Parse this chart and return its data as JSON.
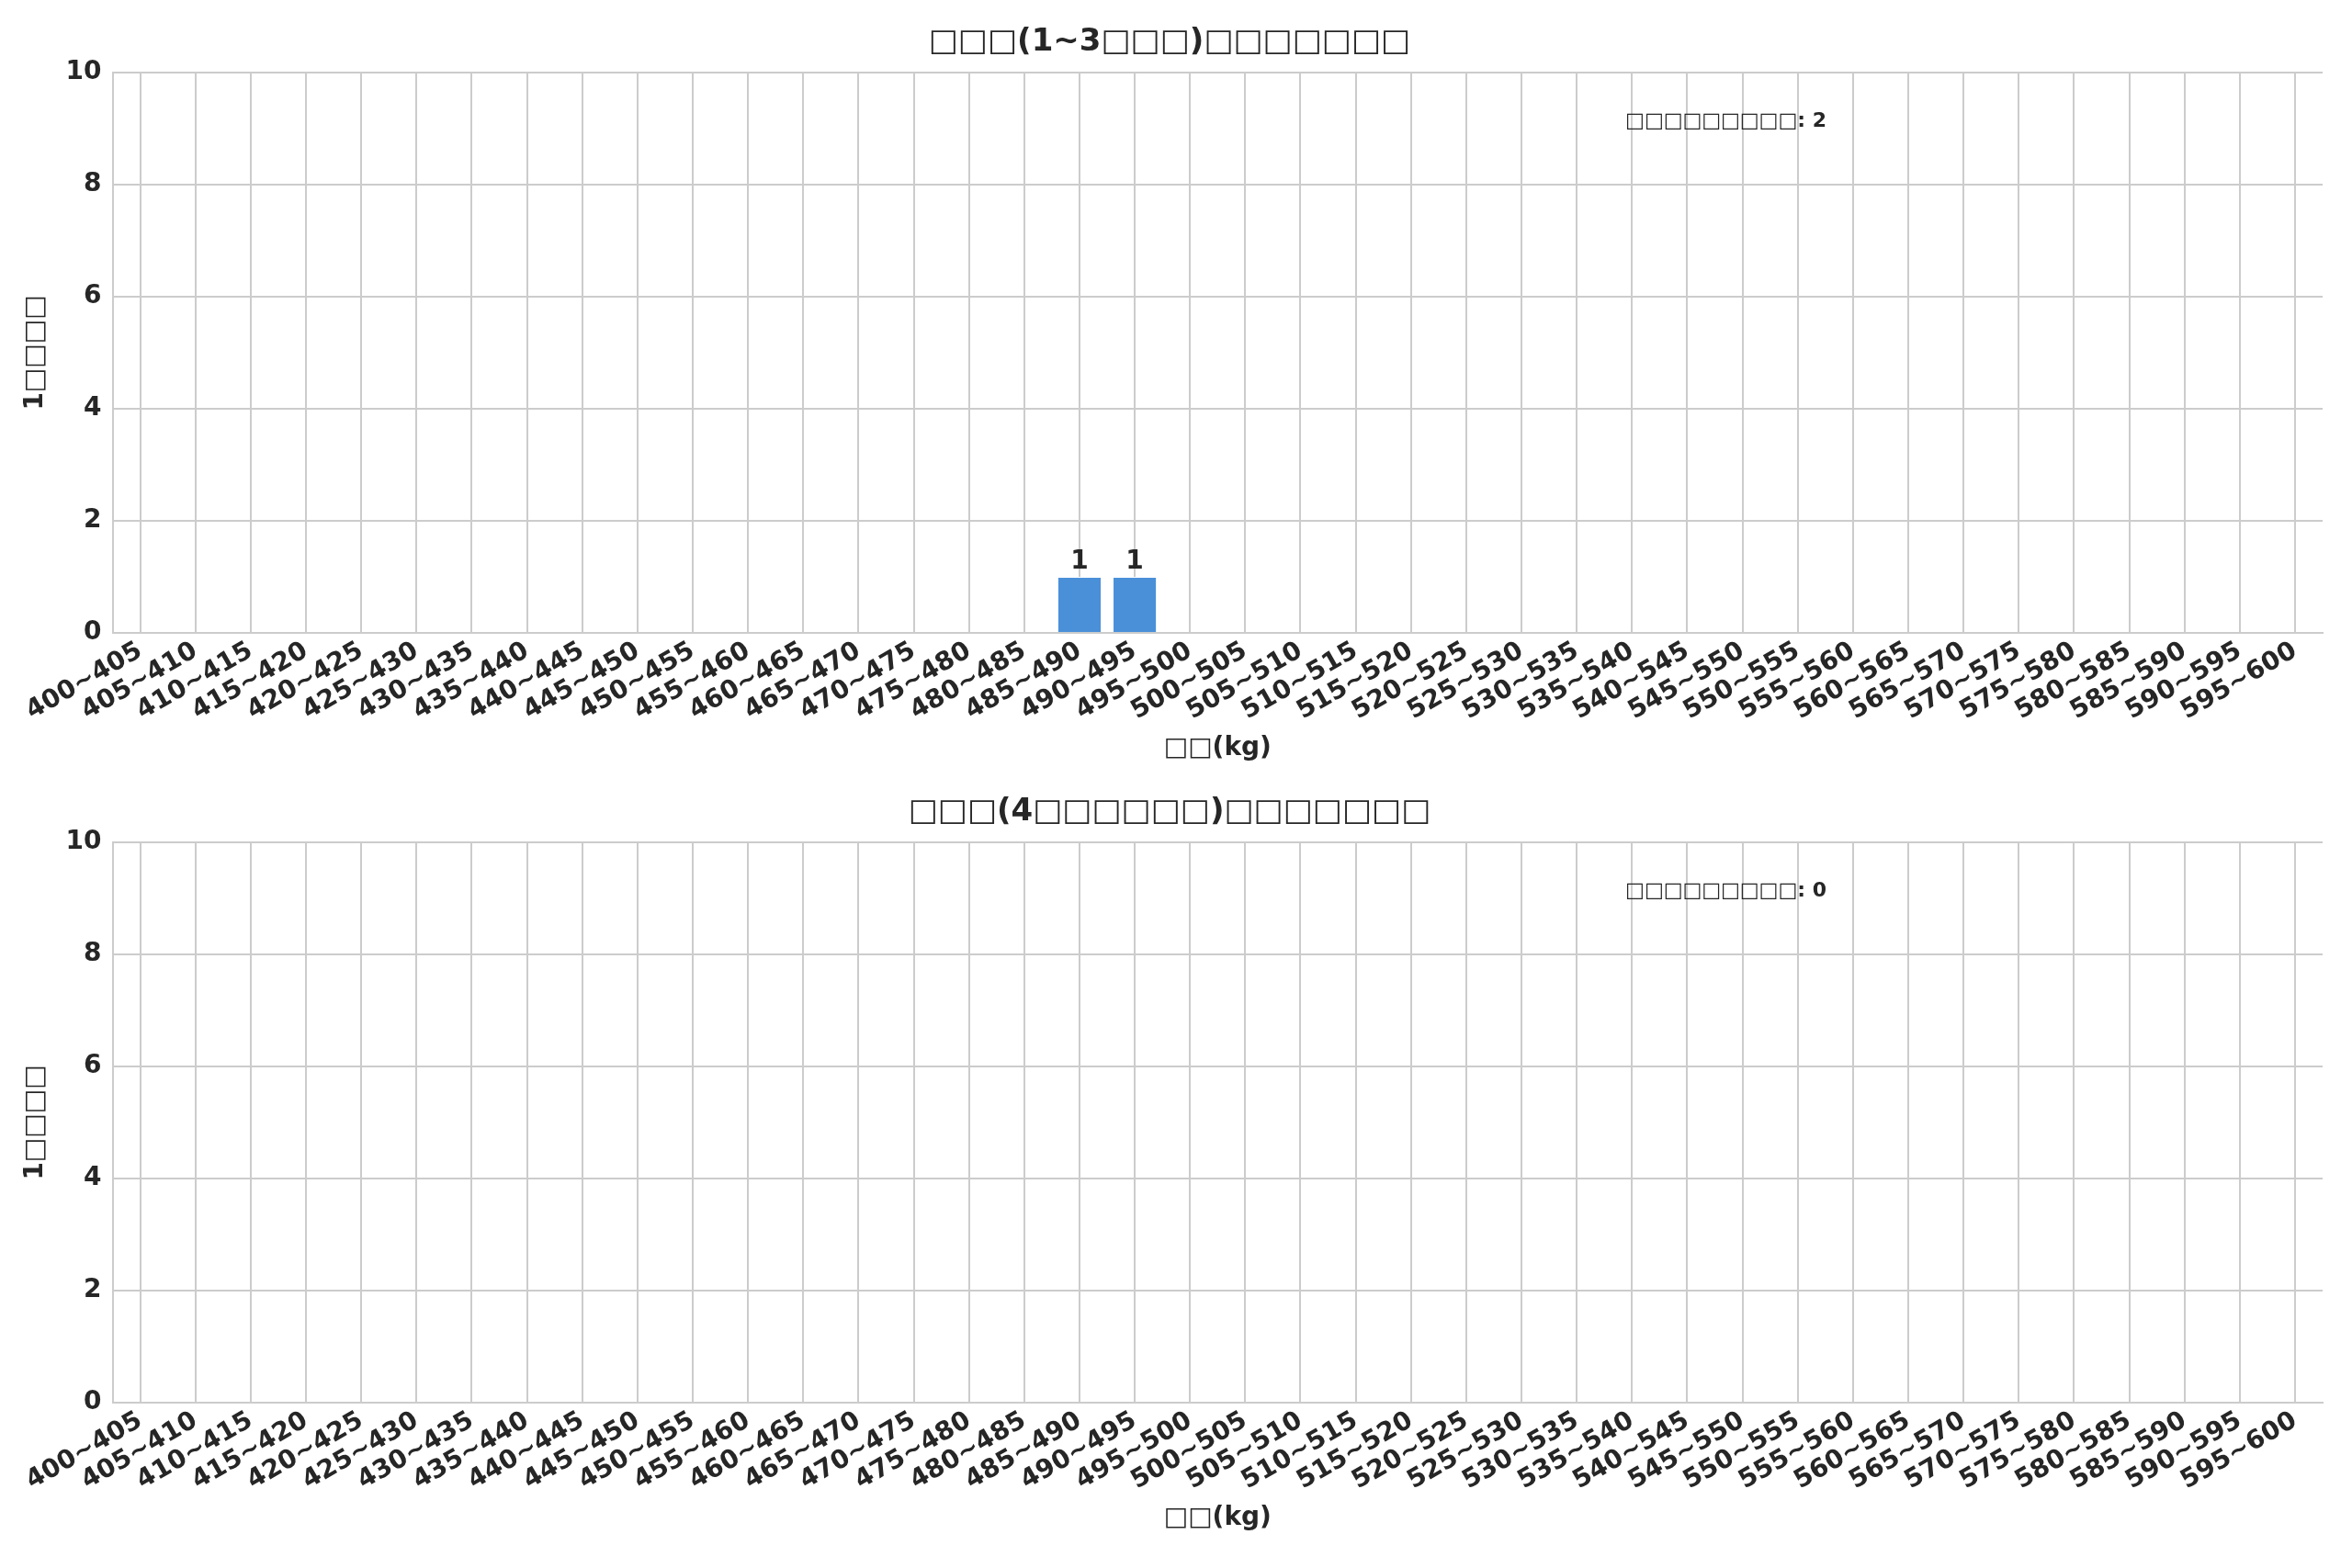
{
  "chart_data": [
    {
      "type": "bar",
      "title": "□□□(1~3□□□)□□□□□□□",
      "xlabel": "□□(kg)",
      "ylabel": "1□□□□",
      "categories": [
        "400~405",
        "405~410",
        "410~415",
        "415~420",
        "420~425",
        "425~430",
        "430~435",
        "435~440",
        "440~445",
        "445~450",
        "450~455",
        "455~460",
        "460~465",
        "465~470",
        "470~475",
        "475~480",
        "480~485",
        "485~490",
        "490~495",
        "495~500",
        "500~505",
        "505~510",
        "510~515",
        "515~520",
        "520~525",
        "525~530",
        "530~535",
        "535~540",
        "540~545",
        "545~550",
        "550~555",
        "555~560",
        "560~565",
        "565~570",
        "570~575",
        "575~580",
        "580~585",
        "585~590",
        "590~595",
        "595~600"
      ],
      "values": [
        0,
        0,
        0,
        0,
        0,
        0,
        0,
        0,
        0,
        0,
        0,
        0,
        0,
        0,
        0,
        0,
        0,
        1,
        1,
        0,
        0,
        0,
        0,
        0,
        0,
        0,
        0,
        0,
        0,
        0,
        0,
        0,
        0,
        0,
        0,
        0,
        0,
        0,
        0,
        0
      ],
      "value_labels": [
        null,
        null,
        null,
        null,
        null,
        null,
        null,
        null,
        null,
        null,
        null,
        null,
        null,
        null,
        null,
        null,
        null,
        "1",
        "1",
        null,
        null,
        null,
        null,
        null,
        null,
        null,
        null,
        null,
        null,
        null,
        null,
        null,
        null,
        null,
        null,
        null,
        null,
        null,
        null,
        null
      ],
      "color": "#4a90d9",
      "ylim": [
        0,
        10
      ],
      "yticks": [
        0,
        2,
        4,
        6,
        8,
        10
      ],
      "grid": true,
      "legend": false,
      "annotations": [
        "□□□□□□□□□: 2"
      ]
    },
    {
      "type": "bar",
      "title": "□□□(4□□□□□□)□□□□□□□",
      "xlabel": "□□(kg)",
      "ylabel": "1□□□□",
      "categories": [
        "400~405",
        "405~410",
        "410~415",
        "415~420",
        "420~425",
        "425~430",
        "430~435",
        "435~440",
        "440~445",
        "445~450",
        "450~455",
        "455~460",
        "460~465",
        "465~470",
        "470~475",
        "475~480",
        "480~485",
        "485~490",
        "490~495",
        "495~500",
        "500~505",
        "505~510",
        "510~515",
        "515~520",
        "520~525",
        "525~530",
        "530~535",
        "535~540",
        "540~545",
        "545~550",
        "550~555",
        "555~560",
        "560~565",
        "565~570",
        "570~575",
        "575~580",
        "580~585",
        "585~590",
        "590~595",
        "595~600"
      ],
      "values": [
        0,
        0,
        0,
        0,
        0,
        0,
        0,
        0,
        0,
        0,
        0,
        0,
        0,
        0,
        0,
        0,
        0,
        0,
        0,
        0,
        0,
        0,
        0,
        0,
        0,
        0,
        0,
        0,
        0,
        0,
        0,
        0,
        0,
        0,
        0,
        0,
        0,
        0,
        0,
        0
      ],
      "color": "#4a90d9",
      "ylim": [
        0,
        10
      ],
      "yticks": [
        0,
        2,
        4,
        6,
        8,
        10
      ],
      "grid": true,
      "legend": false,
      "annotations": [
        "□□□□□□□□□: 0"
      ]
    }
  ]
}
